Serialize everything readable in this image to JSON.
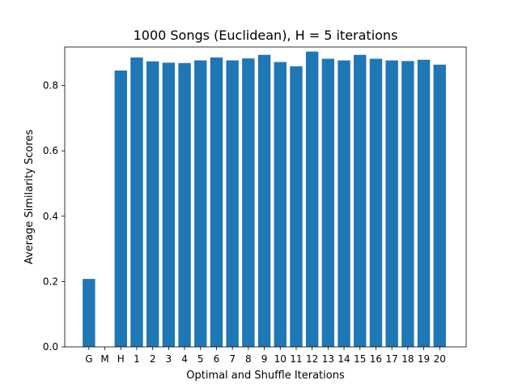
{
  "chart_data": {
    "type": "bar",
    "title": "1000 Songs (Euclidean), H = 5 iterations",
    "xlabel": "Optimal and Shuffle Iterations",
    "ylabel": "Average Similarity Scores",
    "categories": [
      "G",
      "M",
      "H",
      "1",
      "2",
      "3",
      "4",
      "5",
      "6",
      "7",
      "8",
      "9",
      "10",
      "11",
      "12",
      "13",
      "14",
      "15",
      "16",
      "17",
      "18",
      "19",
      "20"
    ],
    "values": [
      0.208,
      0.0,
      0.846,
      0.886,
      0.874,
      0.87,
      0.869,
      0.877,
      0.886,
      0.877,
      0.883,
      0.894,
      0.872,
      0.859,
      0.904,
      0.882,
      0.877,
      0.894,
      0.882,
      0.877,
      0.875,
      0.879,
      0.864
    ],
    "ylim": [
      0,
      0.918
    ],
    "yticks": [
      0.0,
      0.2,
      0.4,
      0.6,
      0.8
    ],
    "ytick_labels": [
      "0.0",
      "0.2",
      "0.4",
      "0.6",
      "0.8"
    ],
    "bar_color": "#1f77b4",
    "grid": false,
    "legend": "none"
  }
}
